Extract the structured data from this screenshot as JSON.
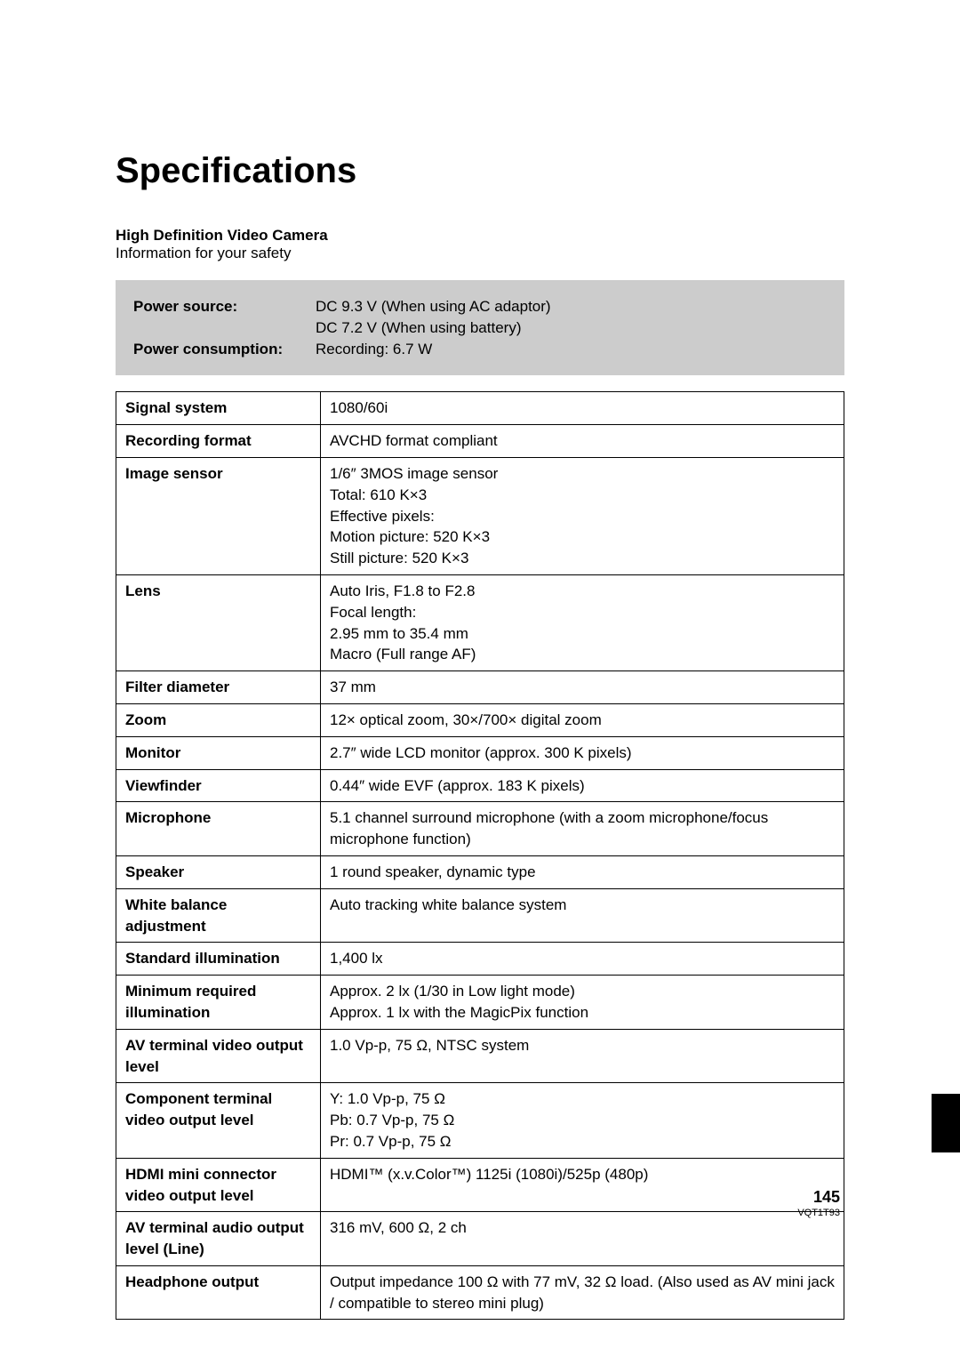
{
  "title": "Specifications",
  "subtitle": "High Definition Video Camera",
  "subtext": "Information for your safety",
  "power": {
    "rows": [
      {
        "label": "Power source:",
        "value": "DC 9.3 V (When using AC adaptor)\nDC 7.2 V (When using battery)"
      },
      {
        "label": "Power consumption:",
        "value": "Recording: 6.7 W"
      }
    ]
  },
  "spec_rows": [
    {
      "label": "Signal system",
      "value": "1080/60i"
    },
    {
      "label": "Recording format",
      "value": "AVCHD format compliant"
    },
    {
      "label": "Image sensor",
      "value": "1/6″ 3MOS image sensor\nTotal: 610 K×3\nEffective pixels:\nMotion picture: 520 K×3\nStill picture: 520 K×3"
    },
    {
      "label": "Lens",
      "value": "Auto Iris, F1.8 to F2.8\nFocal length:\n2.95 mm to 35.4 mm\nMacro (Full range AF)"
    },
    {
      "label": "Filter diameter",
      "value": "37 mm"
    },
    {
      "label": "Zoom",
      "value": "12× optical zoom, 30×/700× digital zoom"
    },
    {
      "label": "Monitor",
      "value": "2.7″ wide LCD monitor (approx. 300 K pixels)"
    },
    {
      "label": "Viewfinder",
      "value": "0.44″ wide EVF (approx. 183 K pixels)"
    },
    {
      "label": "Microphone",
      "value": "5.1 channel surround microphone (with a zoom microphone/focus microphone function)"
    },
    {
      "label": "Speaker",
      "value": "1 round speaker, dynamic type"
    },
    {
      "label": "White balance adjustment",
      "value": "Auto tracking white balance system"
    },
    {
      "label": "Standard illumination",
      "value": "1,400 lx"
    },
    {
      "label": "Minimum required illumination",
      "value": "Approx. 2 lx (1/30 in Low light mode)\nApprox. 1 lx with the MagicPix function"
    },
    {
      "label": "AV terminal video output level",
      "value": "1.0 Vp-p, 75 Ω, NTSC system"
    },
    {
      "label": "Component terminal video output level",
      "value": "Y:    1.0 Vp-p, 75 Ω\nPb:  0.7 Vp-p, 75 Ω\nPr:   0.7 Vp-p, 75 Ω"
    },
    {
      "label": "HDMI mini connector video output level",
      "value": "HDMI™ (x.v.Color™) 1125i (1080i)/525p (480p)"
    },
    {
      "label": "AV terminal audio output level (Line)",
      "value": "316 mV, 600 Ω, 2 ch"
    },
    {
      "label": "Headphone output",
      "value": "Output impedance 100 Ω with 77 mV, 32 Ω load. (Also used as AV mini jack / compatible to stereo mini plug)"
    }
  ],
  "page_number": "145",
  "doc_code": "VQT1T93"
}
